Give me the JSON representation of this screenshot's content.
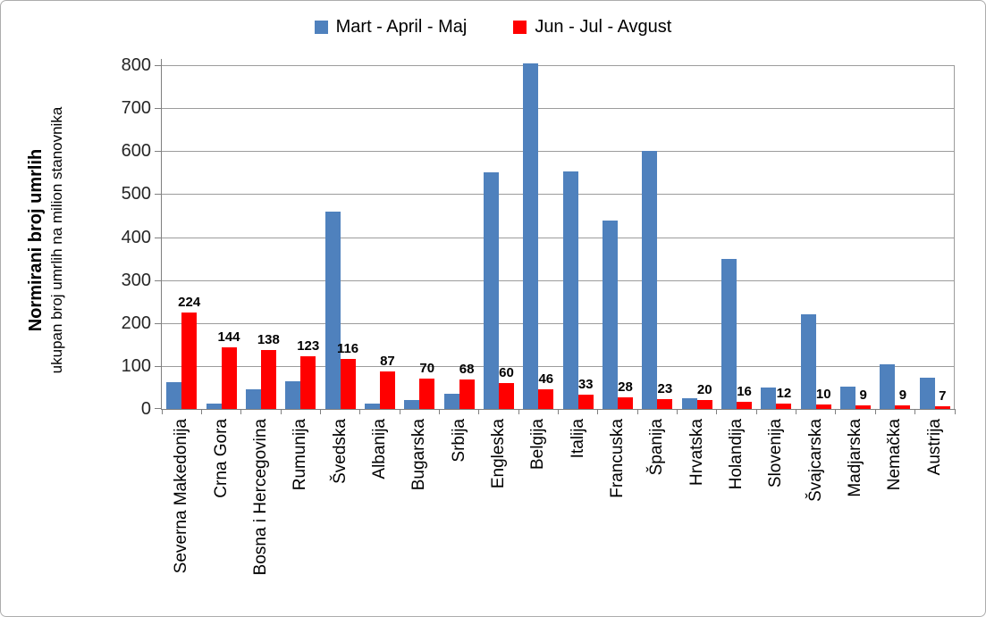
{
  "legend": [
    {
      "label": "Mart - April - Maj",
      "color": "#4F81BD"
    },
    {
      "label": "Jun - Jul - Avgust",
      "color": "#FF0000"
    }
  ],
  "y_axis": {
    "title_bold": "Normirani broj umrlih",
    "title_sub": "ukupan broj umrlih na milion stanovnika"
  },
  "chart_data": {
    "type": "bar",
    "title": "",
    "xlabel": "",
    "ylabel": "Normirani broj umrlih — ukupan broj umrlih na milion stanovnika",
    "ylim": [
      0,
      800
    ],
    "y_ticks": [
      0,
      100,
      200,
      300,
      400,
      500,
      600,
      700,
      800
    ],
    "grid": true,
    "legend_position": "top",
    "categories": [
      "Severna Makedonija",
      "Crna Gora",
      "Bosna i Hercegovina",
      "Rumunija",
      "Švedska",
      "Albanija",
      "Bugarska",
      "Srbija",
      "Engleska",
      "Belgija",
      "Italija",
      "Francuska",
      "Španija",
      "Hrvatska",
      "Holandija",
      "Slovenija",
      "Švajcarska",
      "Madjarska",
      "Nemačka",
      "Austrija"
    ],
    "series": [
      {
        "name": "Mart - April - Maj",
        "color": "#4F81BD",
        "values": [
          62,
          13,
          46,
          65,
          460,
          12,
          21,
          35,
          550,
          805,
          553,
          438,
          600,
          25,
          350,
          50,
          220,
          53,
          103,
          73
        ],
        "data_labels": false
      },
      {
        "name": "Jun - Jul - Avgust",
        "color": "#FF0000",
        "values": [
          224,
          144,
          138,
          123,
          116,
          87,
          70,
          68,
          60,
          46,
          33,
          28,
          23,
          20,
          16,
          12,
          10,
          9,
          9,
          7
        ],
        "data_labels": true
      }
    ]
  }
}
